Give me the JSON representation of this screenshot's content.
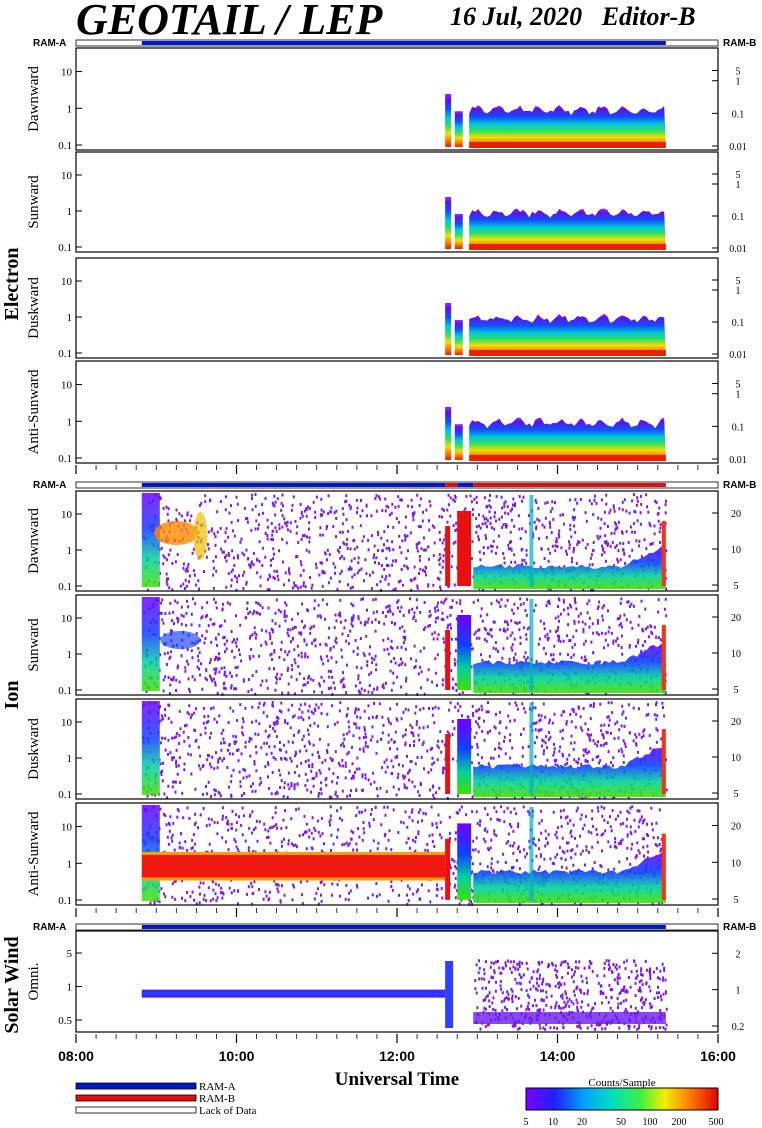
{
  "header": {
    "title": "GEOTAIL / LEP",
    "date": "16 Jul, 2020",
    "editor": "Editor-B"
  },
  "colors": {
    "ram_a": "#0018c8",
    "ram_b": "#e01010",
    "lack": "#ffffff",
    "frame": "#000000"
  },
  "chart_data": {
    "type": "heatmap",
    "xlabel": "Universal Time",
    "x_ticks": [
      "08:00",
      "10:00",
      "12:00",
      "14:00",
      "16:00"
    ],
    "x_range_hours": [
      8,
      16
    ],
    "data_coverage_hours": [
      8.82,
      15.35
    ],
    "groups": [
      {
        "name": "Electron",
        "ram_left": "RAM-A",
        "ram_right": "RAM-B",
        "ram_bar": [
          {
            "from": 8.82,
            "to": 15.35,
            "mode": "RAM-A"
          }
        ],
        "panels": [
          {
            "label": "Dawnward",
            "left_ticks": [
              "0.1",
              "1",
              "10"
            ],
            "right_ticks": [
              "0.01",
              "0.1",
              "1",
              "5"
            ]
          },
          {
            "label": "Sunward",
            "left_ticks": [
              "0.1",
              "1",
              "10"
            ],
            "right_ticks": [
              "0.01",
              "0.1",
              "1",
              "5"
            ]
          },
          {
            "label": "Duskward",
            "left_ticks": [
              "0.1",
              "1",
              "10"
            ],
            "right_ticks": [
              "0.01",
              "0.1",
              "1",
              "5"
            ]
          },
          {
            "label": "Anti-Sunward",
            "left_ticks": [
              "0.1",
              "1",
              "10"
            ],
            "right_ticks": [
              "0.01",
              "0.1",
              "1",
              "5"
            ]
          }
        ]
      },
      {
        "name": "Ion",
        "ram_left": "RAM-A",
        "ram_right": "RAM-B",
        "ram_bar": [
          {
            "from": 8.82,
            "to": 12.6,
            "mode": "RAM-A"
          },
          {
            "from": 12.6,
            "to": 12.75,
            "mode": "RAM-B"
          },
          {
            "from": 12.75,
            "to": 12.95,
            "mode": "RAM-A"
          },
          {
            "from": 12.95,
            "to": 15.35,
            "mode": "RAM-B"
          }
        ],
        "panels": [
          {
            "label": "Dawnward",
            "left_ticks": [
              "0.1",
              "1",
              "10"
            ],
            "right_ticks": [
              "5",
              "10",
              "20"
            ]
          },
          {
            "label": "Sunward",
            "left_ticks": [
              "0.1",
              "1",
              "10"
            ],
            "right_ticks": [
              "5",
              "10",
              "20"
            ]
          },
          {
            "label": "Duskward",
            "left_ticks": [
              "0.1",
              "1",
              "10"
            ],
            "right_ticks": [
              "5",
              "10",
              "20"
            ]
          },
          {
            "label": "Anti-Sunward",
            "left_ticks": [
              "0.1",
              "1",
              "10"
            ],
            "right_ticks": [
              "5",
              "10",
              "20"
            ]
          }
        ]
      },
      {
        "name": "Solar Wind",
        "ram_left": "RAM-A",
        "ram_right": "RAM-B",
        "ram_bar": [
          {
            "from": 8.82,
            "to": 15.35,
            "mode": "RAM-A"
          }
        ],
        "panels": [
          {
            "label": "Omni.",
            "left_ticks": [
              "0.5",
              "1",
              "5"
            ],
            "right_ticks": [
              "0.2",
              "1",
              "2"
            ]
          }
        ]
      }
    ],
    "legend": [
      {
        "label": "RAM-A",
        "color": "#0018c8"
      },
      {
        "label": "RAM-B",
        "color": "#e01010"
      },
      {
        "label": "Lack of Data",
        "color": "#ffffff"
      }
    ],
    "colorbar": {
      "title": "Counts/Sample",
      "ticks": [
        "5",
        "10",
        "20",
        "50",
        "100",
        "200",
        "500"
      ]
    }
  }
}
